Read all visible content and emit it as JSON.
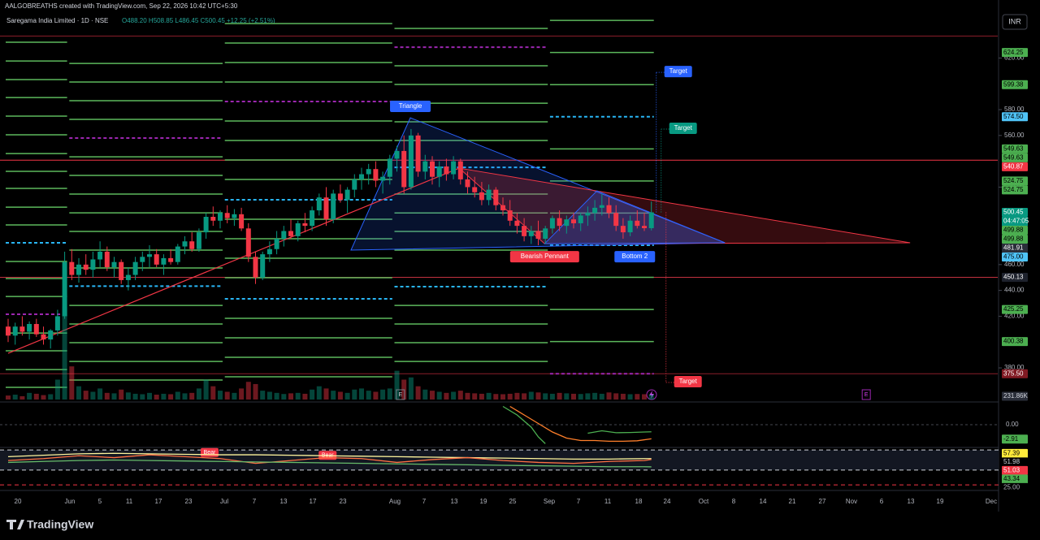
{
  "header": {
    "credit": "AALGOBREATHS created with TradingView.com, Sep 22, 2026 10:42 UTC+5:30",
    "symbol": "Saregama India Limited · 1D · NSE",
    "ohlc_text": "O488.20 H508.85 L486.45 C500.45 +12.25 (+2.51%)"
  },
  "currency": "INR",
  "footer": {
    "brand": "TradingView"
  },
  "chart_data": {
    "type": "candlestick",
    "x_labels": [
      "20",
      "Jun",
      "5",
      "11",
      "17",
      "23",
      "Jul",
      "7",
      "13",
      "17",
      "23",
      "Aug",
      "7",
      "13",
      "19",
      "25",
      "Sep",
      "7",
      "11",
      "18",
      "24",
      "Oct",
      "8",
      "14",
      "21",
      "27",
      "Nov",
      "6",
      "13",
      "19",
      "Dec"
    ],
    "xlim": [
      -0.23,
      140
    ],
    "ylim": [
      355.5,
      653.6
    ],
    "yticks": [
      {
        "value": 620,
        "label": "620.00"
      },
      {
        "value": 580,
        "label": "580.00"
      },
      {
        "value": 560,
        "label": "560.00"
      },
      {
        "value": 520,
        "label": "520.00"
      },
      {
        "value": 460,
        "label": "460.00"
      },
      {
        "value": 440,
        "label": "440.00"
      },
      {
        "value": 420,
        "label": "420.00"
      },
      {
        "value": 380,
        "label": "380.00"
      }
    ],
    "up_color": "#089981",
    "down_color": "#f23645",
    "ohlc": [
      [
        412,
        418,
        400,
        405
      ],
      [
        405,
        415,
        398,
        412
      ],
      [
        412,
        420,
        405,
        408
      ],
      [
        408,
        416,
        402,
        414
      ],
      [
        414,
        418,
        404,
        406
      ],
      [
        406,
        412,
        398,
        402
      ],
      [
        402,
        410,
        395,
        409
      ],
      [
        409,
        425,
        405,
        420
      ],
      [
        420,
        470,
        418,
        462
      ],
      [
        462,
        472,
        448,
        452
      ],
      [
        452,
        465,
        446,
        460
      ],
      [
        460,
        468,
        452,
        456
      ],
      [
        456,
        470,
        450,
        464
      ],
      [
        464,
        478,
        458,
        470
      ],
      [
        470,
        474,
        455,
        458
      ],
      [
        458,
        466,
        450,
        462
      ],
      [
        462,
        464,
        445,
        448
      ],
      [
        448,
        458,
        440,
        452
      ],
      [
        452,
        466,
        448,
        462
      ],
      [
        462,
        470,
        455,
        466
      ],
      [
        466,
        475,
        458,
        468
      ],
      [
        468,
        472,
        458,
        460
      ],
      [
        460,
        468,
        452,
        465
      ],
      [
        465,
        472,
        460,
        462
      ],
      [
        462,
        476,
        460,
        474
      ],
      [
        474,
        482,
        468,
        478
      ],
      [
        478,
        485,
        470,
        472
      ],
      [
        472,
        488,
        470,
        485
      ],
      [
        485,
        500,
        480,
        497
      ],
      [
        497,
        505,
        490,
        494
      ],
      [
        494,
        502,
        488,
        500
      ],
      [
        500,
        506,
        492,
        496
      ],
      [
        496,
        503,
        490,
        499
      ],
      [
        499,
        504,
        486,
        488
      ],
      [
        488,
        492,
        462,
        466
      ],
      [
        466,
        470,
        445,
        450
      ],
      [
        450,
        470,
        448,
        468
      ],
      [
        468,
        478,
        462,
        472
      ],
      [
        472,
        486,
        468,
        480
      ],
      [
        480,
        490,
        474,
        486
      ],
      [
        486,
        495,
        480,
        482
      ],
      [
        482,
        494,
        478,
        492
      ],
      [
        492,
        500,
        485,
        490
      ],
      [
        490,
        505,
        486,
        502
      ],
      [
        502,
        515,
        498,
        512
      ],
      [
        512,
        520,
        490,
        495
      ],
      [
        495,
        518,
        492,
        515
      ],
      [
        515,
        522,
        508,
        510
      ],
      [
        510,
        520,
        500,
        518
      ],
      [
        518,
        530,
        512,
        526
      ],
      [
        526,
        535,
        518,
        530
      ],
      [
        530,
        538,
        522,
        534
      ],
      [
        534,
        540,
        520,
        525
      ],
      [
        525,
        532,
        515,
        528
      ],
      [
        528,
        545,
        522,
        542
      ],
      [
        542,
        552,
        532,
        548
      ],
      [
        548,
        560,
        515,
        520
      ],
      [
        520,
        565,
        518,
        560
      ],
      [
        560,
        562,
        528,
        532
      ],
      [
        532,
        545,
        526,
        540
      ],
      [
        540,
        544,
        522,
        528
      ],
      [
        528,
        540,
        520,
        536
      ],
      [
        536,
        542,
        525,
        530
      ],
      [
        530,
        544,
        526,
        540
      ],
      [
        540,
        542,
        522,
        526
      ],
      [
        526,
        532,
        515,
        520
      ],
      [
        520,
        528,
        512,
        516
      ],
      [
        516,
        524,
        506,
        510
      ],
      [
        510,
        522,
        506,
        518
      ],
      [
        518,
        520,
        502,
        506
      ],
      [
        506,
        512,
        498,
        502
      ],
      [
        502,
        510,
        490,
        494
      ],
      [
        494,
        500,
        484,
        490
      ],
      [
        490,
        496,
        478,
        482
      ],
      [
        482,
        490,
        476,
        486
      ],
      [
        486,
        494,
        475,
        480
      ],
      [
        480,
        490,
        476,
        488
      ],
      [
        488,
        498,
        484,
        496
      ],
      [
        496,
        502,
        486,
        490
      ],
      [
        490,
        498,
        484,
        495
      ],
      [
        495,
        500,
        488,
        492
      ],
      [
        492,
        500,
        486,
        498
      ],
      [
        498,
        505,
        490,
        500
      ],
      [
        500,
        510,
        494,
        504
      ],
      [
        504,
        515,
        498,
        506
      ],
      [
        506,
        512,
        496,
        500
      ],
      [
        500,
        506,
        486,
        490
      ],
      [
        490,
        496,
        480,
        485
      ],
      [
        485,
        498,
        482,
        494
      ],
      [
        494,
        502,
        488,
        490
      ],
      [
        490,
        500,
        486,
        488.2
      ],
      [
        488.2,
        508.85,
        486.45,
        500.45
      ]
    ],
    "volume": [
      180,
      220,
      150,
      300,
      260,
      200,
      240,
      900,
      4200,
      1500,
      600,
      400,
      350,
      500,
      300,
      280,
      450,
      320,
      260,
      240,
      300,
      220,
      260,
      240,
      350,
      280,
      300,
      500,
      900,
      600,
      400,
      350,
      300,
      500,
      800,
      700,
      400,
      350,
      300,
      250,
      280,
      300,
      260,
      450,
      600,
      500,
      400,
      350,
      300,
      450,
      500,
      400,
      350,
      450,
      500,
      1300,
      900,
      1000,
      600,
      450,
      400,
      350,
      300,
      350,
      400,
      300,
      280,
      260,
      300,
      250,
      240,
      260,
      300,
      280,
      350,
      320,
      280,
      260,
      300,
      280,
      260,
      250,
      280,
      300,
      260,
      320,
      280,
      260,
      240,
      250,
      240,
      231.86
    ],
    "volume_lim": [
      0,
      4300
    ],
    "volume_tag": {
      "value": 231.86,
      "label": "231.86K"
    },
    "levels": [
      {
        "start": 0,
        "end": 8,
        "green": [
          632.2,
          617.7,
          603.3,
          589.4,
          575,
          560.5,
          546,
          532.2,
          519,
          504.5,
          490.7,
          462.4,
          449.2,
          435.3,
          407,
          393.2,
          378.7,
          364.9
        ],
        "blue": [
          476.9
        ],
        "purple": [
          421.5
        ]
      },
      {
        "start": 9,
        "end": 30,
        "green": [
          615.8,
          601.4,
          586.9,
          572.5,
          543.5,
          529.1,
          514.6,
          500.1,
          485.7,
          471.2,
          457.4,
          428.4,
          414,
          399.5,
          385,
          370.6
        ],
        "blue": [
          443.3
        ],
        "purple": [
          558
        ]
      },
      {
        "start": 31,
        "end": 54,
        "green": [
          646.7,
          631.6,
          616.5,
          601.4,
          571.2,
          556.1,
          541,
          525.9,
          495.1,
          480,
          464.9,
          449.8,
          418.4,
          403.3,
          388.2,
          373.1
        ],
        "blue": [
          510.2,
          433.5
        ],
        "purple": [
          586.3
        ]
      },
      {
        "start": 55,
        "end": 76,
        "green": [
          642.9,
          614,
          599.5,
          585,
          570.6,
          556.1,
          514.6,
          500,
          485.7,
          471.2,
          428.4,
          414,
          399.5,
          385
        ],
        "blue": [
          535.3,
          442.9
        ],
        "purple": [
          628.4
        ]
      },
      {
        "start": 77,
        "end": 91,
        "green": [
          649.13,
          624.25,
          599.38,
          549.63,
          524.75,
          499.88,
          450.13,
          425.25,
          400.38
        ],
        "blue": [
          574.5,
          475
        ],
        "purple": [
          375.5
        ]
      }
    ],
    "h_lines": [
      {
        "value": 637,
        "color": "#8b1e2b"
      },
      {
        "value": 540.87,
        "color": "#f23645"
      },
      {
        "value": 450.13,
        "color": "#c2313f"
      },
      {
        "value": 375.5,
        "color": "#8b1e2b"
      }
    ],
    "trend_lines": [
      {
        "color": "#f23645",
        "points": [
          [
            0,
            391.3
          ],
          [
            63.8,
            534.7
          ]
        ]
      }
    ],
    "patterns": [
      {
        "name": "Triangle",
        "color": "#2962ff",
        "fill": "rgba(41,98,255,0.18)",
        "points": [
          [
            48.5,
            471.2
          ],
          [
            56.9,
            573.7
          ],
          [
            101.4,
            476.9
          ]
        ]
      },
      {
        "name": "Bearish Pennant",
        "color": "#f23645",
        "fill": "rgba(242,54,69,0.22)",
        "points": [
          [
            63.8,
            534.7
          ],
          [
            127.6,
            476.9
          ],
          [
            75.9,
            476.2
          ]
        ]
      },
      {
        "name": "Bottom 2",
        "color": "#2962ff",
        "fill": "rgba(41,98,255,0.22)",
        "points": [
          [
            75.9,
            476.2
          ],
          [
            83.3,
            517.1
          ],
          [
            101.4,
            476.9
          ]
        ]
      }
    ],
    "targets": [
      {
        "label": "Target",
        "value": 608.9,
        "color": "#2962ff"
      },
      {
        "label": "Target",
        "value": 564.9,
        "color": "#089981"
      },
      {
        "label": "Target",
        "value": 368.7,
        "color": "#f23645"
      }
    ],
    "events": [
      {
        "label": "E",
        "x": 55.5
      },
      {
        "label": "E",
        "x": 121.4
      }
    ],
    "price_tags": [
      {
        "value": 624.25,
        "bg": "#4caf50",
        "fg": "#000"
      },
      {
        "value": 599.38,
        "bg": "#4caf50",
        "fg": "#000"
      },
      {
        "value": 574.5,
        "label": "574.50",
        "bg": "#4fc3f7",
        "fg": "#000"
      },
      {
        "value": 549.63,
        "bg": "#4caf50",
        "fg": "#000"
      },
      {
        "value": 549.63,
        "bg": "#4caf50",
        "fg": "#000"
      },
      {
        "value": 540.87,
        "bg": "#f23645",
        "fg": "#fff"
      },
      {
        "value": 524.75,
        "bg": "#4caf50",
        "fg": "#000"
      },
      {
        "value": 524.75,
        "bg": "#4caf50",
        "fg": "#000"
      },
      {
        "value": 500.45,
        "bg": "#089981",
        "fg": "#fff"
      },
      {
        "value": 499.88,
        "bg": "#4caf50",
        "fg": "#000"
      },
      {
        "value": 499.88,
        "bg": "#4caf50",
        "fg": "#000"
      },
      {
        "value": 481.91,
        "bg": "#2a2e39",
        "fg": "#fff"
      },
      {
        "value": 475,
        "label": "475.00",
        "bg": "#4fc3f7",
        "fg": "#000"
      },
      {
        "value": 450.13,
        "bg": "#1e222d",
        "fg": "#fff"
      },
      {
        "value": 425.25,
        "bg": "#4caf50",
        "fg": "#000"
      },
      {
        "value": 400.38,
        "bg": "#4caf50",
        "fg": "#000"
      },
      {
        "value": 375.5,
        "label": "375.50",
        "bg": "#801922",
        "fg": "#fff"
      }
    ],
    "countdown": "04:47:05",
    "macd": {
      "ylim": [
        -8,
        8
      ],
      "yticks": [
        {
          "value": 0,
          "label": "0.00"
        }
      ],
      "tag": {
        "value": -2.91,
        "bg": "#4caf50",
        "fg": "#000"
      },
      "series": [
        {
          "color": "#4caf50",
          "x": [
            70,
            72,
            74,
            75,
            76,
            80,
            82,
            84,
            86,
            88,
            90,
            91
          ],
          "values": [
            7.5,
            4,
            -1,
            -5,
            -7.8,
            null,
            -3.5,
            -2.5,
            -3.3,
            -3.2,
            -3,
            -2.91
          ]
        },
        {
          "color": "#ff7f2a",
          "x": [
            71,
            73,
            75,
            77,
            79,
            81,
            83,
            85,
            87,
            89,
            91
          ],
          "values": [
            7.5,
            4,
            0.5,
            -3,
            -5.5,
            -6.5,
            -6.5,
            -6.8,
            -6.8,
            -6.6,
            -5.8
          ]
        }
      ]
    },
    "rsi": {
      "ylim": [
        22,
        62
      ],
      "bands": [
        {
          "value": 61,
          "color": "#d1d4dc"
        },
        {
          "value": 40,
          "color": "#d1d4dc"
        },
        {
          "value": 24.5,
          "color": "#f23645"
        }
      ],
      "tags": [
        {
          "value": 57.39,
          "bg": "#ffeb3b",
          "fg": "#000"
        },
        {
          "value": 51.98,
          "bg": "#000",
          "fg": "#d1d4dc"
        },
        {
          "value": 51.03,
          "bg": "#f23645",
          "fg": "#fff"
        },
        {
          "value": 43.34,
          "bg": "#4caf50",
          "fg": "#000"
        },
        {
          "value": 25,
          "label": "25.00",
          "bg": "#000",
          "fg": "#b2b5be"
        }
      ],
      "signals": [
        {
          "label": "Bear",
          "x": 28.5,
          "value": 58
        },
        {
          "label": "Bear",
          "x": 45.2,
          "value": 55
        }
      ],
      "series": [
        {
          "color": "#fff59d",
          "x": [
            0,
            5,
            10,
            15,
            20,
            25,
            30,
            35,
            40,
            45,
            50,
            55,
            60,
            65,
            70,
            75,
            80,
            85,
            90,
            91
          ],
          "values": [
            54,
            55.5,
            57,
            57.5,
            57,
            56.5,
            56,
            56,
            55.5,
            55,
            54.5,
            54,
            53.5,
            53,
            52.5,
            52,
            51.5,
            51.5,
            52,
            51.98
          ]
        },
        {
          "color": "#ff7043",
          "x": [
            0,
            5,
            10,
            15,
            20,
            25,
            30,
            35,
            40,
            45,
            50,
            55,
            60,
            65,
            70,
            75,
            80,
            85,
            90,
            91
          ],
          "values": [
            50,
            52,
            55,
            53,
            56,
            54,
            52,
            47,
            50,
            53,
            52,
            48,
            51,
            53,
            50,
            48,
            47,
            49,
            50,
            51.03
          ]
        },
        {
          "color": "#66bb6a",
          "x": [
            0,
            5,
            10,
            15,
            20,
            25,
            30,
            35,
            40,
            45,
            50,
            55,
            60,
            65,
            70,
            75,
            80,
            85,
            90,
            91
          ],
          "values": [
            48,
            49,
            50,
            50.5,
            50,
            49.5,
            49,
            48.5,
            48,
            47.5,
            47,
            46.5,
            46,
            45.5,
            45,
            44.5,
            44,
            43.5,
            43.5,
            43.34
          ]
        }
      ]
    }
  }
}
